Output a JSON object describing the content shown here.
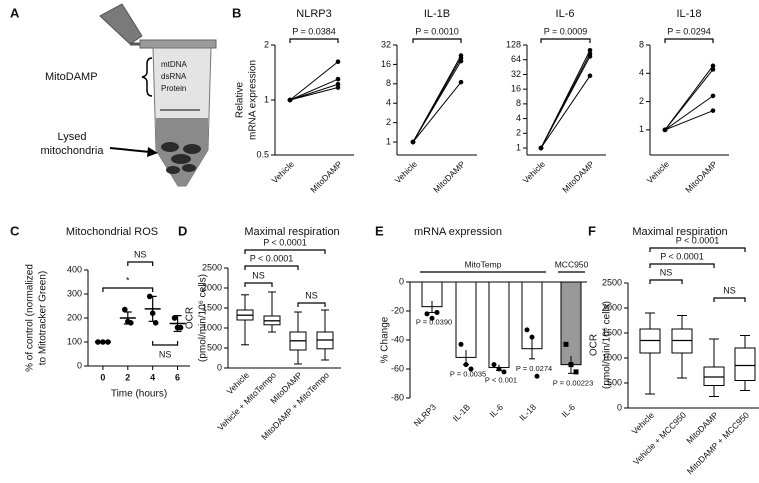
{
  "diagram": {
    "panel": "A",
    "mitodamp": "MitoDAMP",
    "contents": [
      "mtDNA",
      "dsRNA",
      "Protein"
    ],
    "lysed": [
      "Lysed",
      "mitochondria"
    ]
  },
  "chart_data": [
    {
      "panel": "B",
      "type": "line",
      "title": "NLRP3",
      "ylabel": [
        "Relative",
        "mRNA expression"
      ],
      "categories": [
        "Vehicle",
        "MitoDAMP"
      ],
      "log_scale": true,
      "ylim": [
        0.5,
        2
      ],
      "yticks": [
        0.5,
        1,
        2
      ],
      "annotation": "P = 0.0384",
      "color": "#000000",
      "series": [
        {
          "values": [
            1,
            1.62
          ]
        },
        {
          "values": [
            1,
            1.3
          ]
        },
        {
          "values": [
            1,
            1.22
          ]
        },
        {
          "values": [
            1,
            1.17
          ]
        }
      ]
    },
    {
      "type": "line",
      "title": "IL-1B",
      "categories": [
        "Vehicle",
        "MitoDAMP"
      ],
      "log_scale": true,
      "ylim": [
        0.63,
        32
      ],
      "yticks": [
        1,
        2,
        4,
        8,
        16,
        32
      ],
      "annotation": "P = 0.0010",
      "color": "#000000",
      "series": [
        {
          "values": [
            1,
            22
          ]
        },
        {
          "values": [
            1,
            20
          ]
        },
        {
          "values": [
            1,
            18
          ]
        },
        {
          "values": [
            1,
            8.5
          ]
        }
      ]
    },
    {
      "type": "line",
      "title": "IL-6",
      "categories": [
        "Vehicle",
        "MitoDAMP"
      ],
      "log_scale": true,
      "ylim": [
        0.72,
        128
      ],
      "yticks": [
        1,
        2,
        4,
        8,
        16,
        32,
        64,
        128
      ],
      "annotation": "P = 0.0009",
      "color": "#000000",
      "series": [
        {
          "values": [
            1,
            100
          ]
        },
        {
          "values": [
            1,
            85
          ]
        },
        {
          "values": [
            1,
            75
          ]
        },
        {
          "values": [
            1,
            30
          ]
        }
      ]
    },
    {
      "type": "line",
      "title": "IL-18",
      "categories": [
        "Vehicle",
        "MitoDAMP"
      ],
      "log_scale": true,
      "ylim": [
        0.54,
        8
      ],
      "yticks": [
        1,
        2,
        4,
        8
      ],
      "annotation": "P = 0.0294",
      "color": "#000000",
      "series": [
        {
          "values": [
            1,
            4.8
          ]
        },
        {
          "values": [
            1,
            4.4
          ]
        },
        {
          "values": [
            1,
            2.3
          ]
        },
        {
          "values": [
            1,
            1.6
          ]
        }
      ]
    },
    {
      "panel": "C",
      "type": "dotplot",
      "title": "Mitochondrial ROS",
      "ylabel": [
        "% of control (normalized",
        "to Mitotracker Green)"
      ],
      "xlabel": "Time (hours)",
      "x": [
        0,
        2,
        4,
        6
      ],
      "xlim": [
        -1.2,
        7
      ],
      "xticks": [
        0,
        2,
        4,
        6
      ],
      "ylim": [
        0,
        400
      ],
      "yticks": [
        0,
        100,
        200,
        300,
        400
      ],
      "points": [
        [
          100,
          100,
          100
        ],
        [
          235,
          185,
          180
        ],
        [
          290,
          220,
          180
        ],
        [
          200,
          160,
          160
        ]
      ],
      "mean": [
        100,
        200,
        238,
        177
      ],
      "sem": [
        0,
        25,
        52,
        33
      ],
      "annotations": [
        "*",
        "NS",
        "NS"
      ],
      "color": "#000000"
    },
    {
      "panel": "D",
      "type": "box",
      "title": "Maximal respiration",
      "ylabel": [
        "OCR",
        "(pmol/min/10⁶ cells)"
      ],
      "categories": [
        "Vehicle",
        "Vehicle + MitoTempo",
        "MitoDAMP",
        "MitoDAMP + MitoTempo"
      ],
      "ylim": [
        0,
        2500
      ],
      "yticks": [
        0,
        500,
        1000,
        1500,
        2000,
        2500
      ],
      "boxes": [
        {
          "min": 580,
          "q1": 1200,
          "median": 1320,
          "q3": 1450,
          "max": 1830
        },
        {
          "min": 900,
          "q1": 1080,
          "median": 1180,
          "q3": 1300,
          "max": 1900
        },
        {
          "min": 100,
          "q1": 450,
          "median": 680,
          "q3": 900,
          "max": 1400
        },
        {
          "min": 200,
          "q1": 480,
          "median": 700,
          "q3": 900,
          "max": 1450
        }
      ],
      "annotations": [
        "P < 0.0001",
        "P < 0.0001",
        "NS",
        "NS"
      ],
      "color": "#ffffff"
    },
    {
      "panel": "E",
      "type": "bar",
      "title": "mRNA expression",
      "ylabel": "% Change",
      "categories": [
        "NLRP3",
        "IL-1B",
        "IL-6",
        "IL-18",
        "IL-6"
      ],
      "values": [
        -17,
        -52,
        -59,
        -46,
        -57
      ],
      "errors": [
        4,
        5,
        2,
        7,
        6
      ],
      "points": [
        [
          -22,
          -25,
          -21
        ],
        [
          -43,
          -57,
          -60
        ],
        [
          -57,
          -60,
          -62
        ],
        [
          -33,
          -38,
          -65
        ],
        [
          -43,
          -57,
          -62
        ]
      ],
      "colors": [
        "#ffffff",
        "#ffffff",
        "#ffffff",
        "#ffffff",
        "#999999"
      ],
      "groups": [
        "MitoTemp",
        "MCC950"
      ],
      "value_annotations": [
        "P = 0.0390",
        "P = 0.0035",
        "P < 0.001",
        "P = 0.0274",
        "P = 0.00223"
      ],
      "ylim": [
        -80,
        0
      ],
      "yticks": [
        -80,
        -60,
        -40,
        -20,
        0
      ]
    },
    {
      "panel": "F",
      "type": "box",
      "title": "Maximal respiration",
      "ylabel": [
        "OCR",
        "(pmol/min/10⁶ cells)"
      ],
      "categories": [
        "Vehicle",
        "Vehicle + MCC950",
        "MitoDAMP",
        "MitoDAMP + MCC950"
      ],
      "ylim": [
        0,
        2500
      ],
      "yticks": [
        0,
        500,
        1000,
        1500,
        2000,
        2500
      ],
      "boxes": [
        {
          "min": 280,
          "q1": 1100,
          "median": 1350,
          "q3": 1580,
          "max": 1900
        },
        {
          "min": 600,
          "q1": 1100,
          "median": 1350,
          "q3": 1580,
          "max": 1850
        },
        {
          "min": 230,
          "q1": 450,
          "median": 620,
          "q3": 820,
          "max": 1380
        },
        {
          "min": 350,
          "q1": 550,
          "median": 850,
          "q3": 1200,
          "max": 1450
        }
      ],
      "annotations": [
        "P < 0.0001",
        "P < 0.0001",
        "NS",
        "NS"
      ],
      "color": "#ffffff"
    }
  ]
}
